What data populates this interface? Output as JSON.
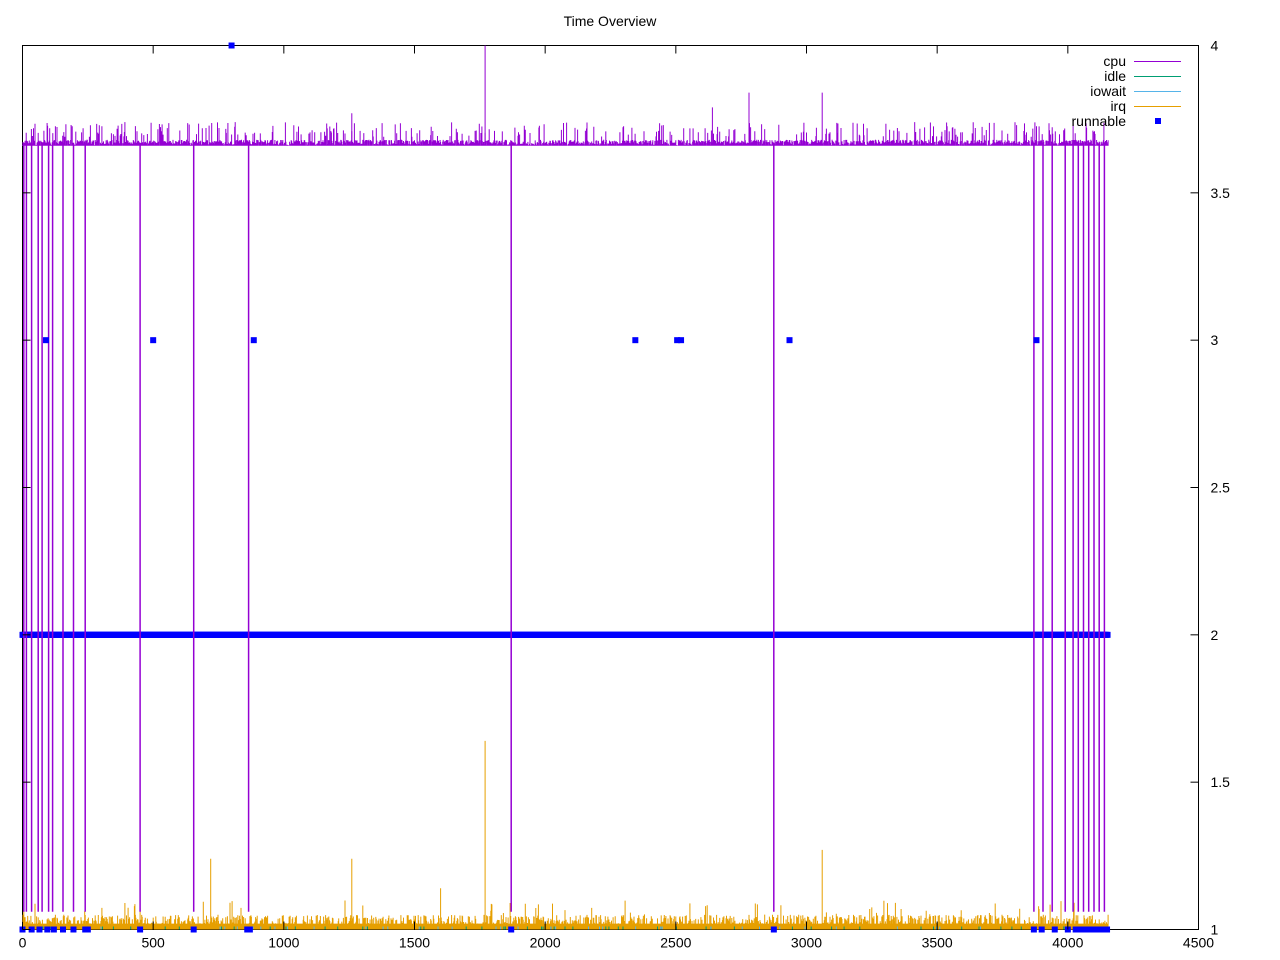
{
  "chart_data": {
    "type": "line",
    "title": "Time Overview",
    "xlabel": "",
    "ylabel": "",
    "xlim": [
      0,
      4500
    ],
    "ylim": [
      1,
      4
    ],
    "y_axis_side": "right",
    "x_ticks": [
      0,
      500,
      1000,
      1500,
      2000,
      2500,
      3000,
      3500,
      4000,
      4500
    ],
    "y_ticks": [
      1,
      1.5,
      2,
      2.5,
      3,
      3.5,
      4
    ],
    "y_tick_labels": [
      "1",
      "1.5",
      "2",
      "2.5",
      "3",
      "3.5",
      "4"
    ],
    "grid": false,
    "legend_position": "top-right",
    "series": [
      {
        "name": "cpu",
        "kind": "line",
        "color": "#9400d3",
        "baseline": 3.67,
        "x_end": 4155,
        "drops": [
          5,
          15,
          35,
          60,
          75,
          100,
          115,
          155,
          195,
          240,
          450,
          655,
          865,
          1870,
          2875,
          3870,
          3905,
          3940,
          3990,
          4020,
          4040,
          4060,
          4080,
          4100,
          4120,
          4140
        ],
        "spikes": [
          [
            1770,
            4.0
          ],
          [
            2780,
            3.84
          ],
          [
            3060,
            3.84
          ],
          [
            2640,
            3.79
          ],
          [
            1260,
            3.77
          ]
        ]
      },
      {
        "name": "idle",
        "kind": "line",
        "color": "#009e73",
        "baseline": 1.0
      },
      {
        "name": "iowait",
        "kind": "line",
        "color": "#56b4e9",
        "baseline": 1.0
      },
      {
        "name": "irq",
        "kind": "line",
        "color": "#e69f00",
        "baseline": 1.02,
        "x_end": 4155,
        "spikes": [
          [
            1770,
            1.64
          ],
          [
            3060,
            1.27
          ],
          [
            1260,
            1.24
          ],
          [
            720,
            1.24
          ],
          [
            5,
            1.29
          ],
          [
            1600,
            1.14
          ]
        ]
      },
      {
        "name": "runnable",
        "kind": "points",
        "color": "#0000ff",
        "baseline": 2,
        "x_end": 4155,
        "points": [
          [
            800,
            4
          ],
          [
            90,
            3
          ],
          [
            500,
            3
          ],
          [
            885,
            3
          ],
          [
            2345,
            3
          ],
          [
            2505,
            3
          ],
          [
            2520,
            3
          ],
          [
            2935,
            3
          ],
          [
            3880,
            3
          ],
          [
            0,
            1
          ],
          [
            35,
            1
          ],
          [
            65,
            1
          ],
          [
            95,
            1
          ],
          [
            120,
            1
          ],
          [
            155,
            1
          ],
          [
            195,
            1
          ],
          [
            240,
            1
          ],
          [
            250,
            1
          ],
          [
            450,
            1
          ],
          [
            655,
            1
          ],
          [
            860,
            1
          ],
          [
            870,
            1
          ],
          [
            1870,
            1
          ],
          [
            2875,
            1
          ],
          [
            3870,
            1
          ],
          [
            3900,
            1
          ],
          [
            3950,
            1
          ],
          [
            4000,
            1
          ],
          [
            4030,
            1
          ],
          [
            4050,
            1
          ],
          [
            4070,
            1
          ],
          [
            4090,
            1
          ],
          [
            4110,
            1
          ],
          [
            4130,
            1
          ],
          [
            4150,
            1
          ]
        ]
      }
    ]
  }
}
